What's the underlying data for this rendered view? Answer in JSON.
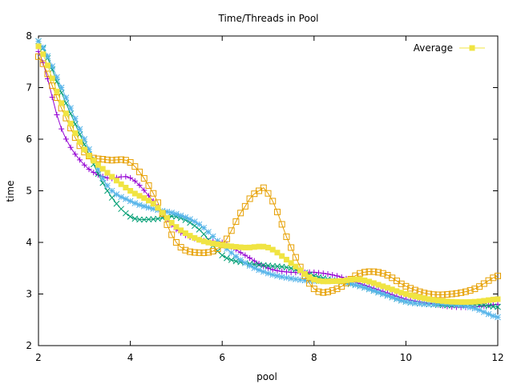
{
  "chart_data": {
    "type": "line",
    "title": "Time/Threads in Pool",
    "xlabel": "pool",
    "ylabel": "time",
    "xlim": [
      2,
      12
    ],
    "ylim": [
      2,
      8
    ],
    "x_ticks": [
      "2",
      "4",
      "6",
      "8",
      "10",
      "12"
    ],
    "y_ticks": [
      "2",
      "3",
      "4",
      "5",
      "6",
      "7",
      "8"
    ],
    "grid": false,
    "legend_position": "top-right",
    "series": [
      {
        "color": "#9400d3",
        "marker": "plus",
        "points": [
          [
            2.0,
            7.7
          ],
          [
            2.5,
            6.2
          ],
          [
            3.0,
            5.5
          ],
          [
            3.5,
            5.25
          ],
          [
            4.0,
            5.25
          ],
          [
            4.5,
            4.8
          ],
          [
            5.0,
            4.25
          ],
          [
            5.5,
            4.05
          ],
          [
            6.0,
            4.0
          ],
          [
            6.5,
            3.75
          ],
          [
            7.0,
            3.5
          ],
          [
            7.5,
            3.42
          ],
          [
            8.0,
            3.42
          ],
          [
            8.5,
            3.35
          ],
          [
            9.0,
            3.2
          ],
          [
            9.5,
            3.05
          ],
          [
            10.0,
            2.9
          ],
          [
            10.5,
            2.82
          ],
          [
            11.0,
            2.75
          ],
          [
            11.5,
            2.75
          ],
          [
            12.0,
            2.8
          ]
        ]
      },
      {
        "color": "#009e73",
        "marker": "cross",
        "points": [
          [
            2.0,
            7.9
          ],
          [
            2.5,
            6.9
          ],
          [
            3.0,
            5.9
          ],
          [
            3.5,
            5.0
          ],
          [
            4.0,
            4.5
          ],
          [
            4.5,
            4.45
          ],
          [
            5.0,
            4.5
          ],
          [
            5.5,
            4.25
          ],
          [
            6.0,
            3.75
          ],
          [
            6.5,
            3.6
          ],
          [
            7.0,
            3.55
          ],
          [
            7.5,
            3.5
          ],
          [
            8.0,
            3.35
          ],
          [
            8.5,
            3.25
          ],
          [
            9.0,
            3.15
          ],
          [
            9.5,
            3.0
          ],
          [
            10.0,
            2.85
          ],
          [
            10.5,
            2.8
          ],
          [
            11.0,
            2.78
          ],
          [
            11.5,
            2.8
          ],
          [
            12.0,
            2.75
          ]
        ]
      },
      {
        "color": "#56b4e9",
        "marker": "star",
        "points": [
          [
            2.0,
            7.9
          ],
          [
            2.5,
            7.0
          ],
          [
            3.0,
            6.0
          ],
          [
            3.5,
            5.1
          ],
          [
            4.0,
            4.8
          ],
          [
            4.5,
            4.65
          ],
          [
            5.0,
            4.55
          ],
          [
            5.5,
            4.35
          ],
          [
            6.0,
            3.95
          ],
          [
            6.5,
            3.6
          ],
          [
            7.0,
            3.4
          ],
          [
            7.5,
            3.3
          ],
          [
            8.0,
            3.25
          ],
          [
            8.5,
            3.25
          ],
          [
            9.0,
            3.15
          ],
          [
            9.5,
            3.0
          ],
          [
            10.0,
            2.85
          ],
          [
            10.5,
            2.8
          ],
          [
            11.0,
            2.8
          ],
          [
            11.5,
            2.72
          ],
          [
            12.0,
            2.55
          ]
        ]
      },
      {
        "color": "#e69f00",
        "marker": "open-square",
        "points": [
          [
            2.0,
            7.6
          ],
          [
            2.5,
            6.6
          ],
          [
            3.0,
            5.75
          ],
          [
            3.5,
            5.6
          ],
          [
            4.0,
            5.55
          ],
          [
            4.5,
            4.95
          ],
          [
            5.0,
            4.0
          ],
          [
            5.5,
            3.8
          ],
          [
            6.0,
            3.95
          ],
          [
            6.5,
            4.7
          ],
          [
            6.8,
            5.0
          ],
          [
            7.0,
            4.95
          ],
          [
            7.5,
            3.9
          ],
          [
            8.0,
            3.1
          ],
          [
            8.5,
            3.1
          ],
          [
            9.0,
            3.4
          ],
          [
            9.5,
            3.4
          ],
          [
            10.0,
            3.15
          ],
          [
            10.5,
            3.0
          ],
          [
            11.0,
            3.0
          ],
          [
            11.5,
            3.1
          ],
          [
            12.0,
            3.35
          ]
        ]
      },
      {
        "name": "Average",
        "color": "#f0e442",
        "marker": "filled-square",
        "points": [
          [
            2.0,
            7.8
          ],
          [
            2.5,
            6.7
          ],
          [
            3.0,
            5.8
          ],
          [
            3.5,
            5.35
          ],
          [
            4.0,
            5.0
          ],
          [
            4.5,
            4.75
          ],
          [
            5.0,
            4.3
          ],
          [
            5.5,
            4.05
          ],
          [
            6.0,
            3.95
          ],
          [
            6.5,
            3.9
          ],
          [
            7.0,
            3.9
          ],
          [
            7.5,
            3.6
          ],
          [
            8.0,
            3.28
          ],
          [
            8.5,
            3.25
          ],
          [
            9.0,
            3.28
          ],
          [
            9.5,
            3.15
          ],
          [
            10.0,
            3.0
          ],
          [
            10.5,
            2.9
          ],
          [
            11.0,
            2.85
          ],
          [
            11.5,
            2.85
          ],
          [
            12.0,
            2.9
          ]
        ]
      }
    ]
  }
}
